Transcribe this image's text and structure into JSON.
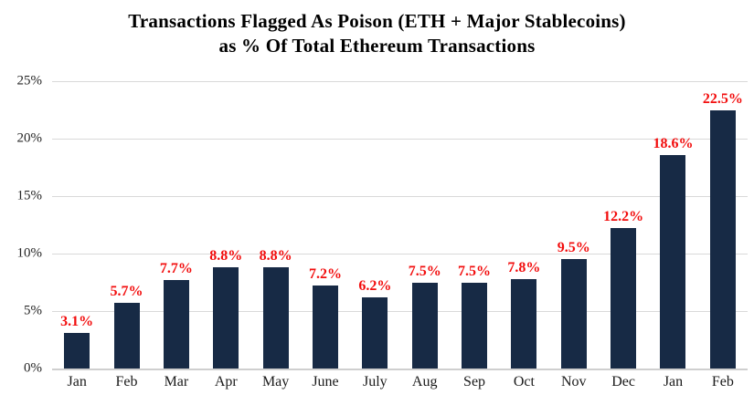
{
  "title": {
    "line1": "Transactions Flagged As Poison (ETH + Major Stablecoins)",
    "line2": "as % Of Total Ethereum Transactions"
  },
  "colors": {
    "bar": "#172a45",
    "data_label": "#f20d0d",
    "gridline": "#d9d9d9",
    "axis_text": "#262626",
    "background": "#ffffff"
  },
  "chart_data": {
    "type": "bar",
    "title": "Transactions Flagged As Poison (ETH + Major Stablecoins) as % Of Total Ethereum Transactions",
    "categories": [
      "Jan",
      "Feb",
      "Mar",
      "Apr",
      "May",
      "June",
      "July",
      "Aug",
      "Sep",
      "Oct",
      "Nov",
      "Dec",
      "Jan",
      "Feb"
    ],
    "values": [
      3.1,
      5.7,
      7.7,
      8.8,
      8.8,
      7.2,
      6.2,
      7.5,
      7.5,
      7.8,
      9.5,
      12.2,
      18.6,
      22.5
    ],
    "data_labels": [
      "3.1%",
      "5.7%",
      "7.7%",
      "8.8%",
      "8.8%",
      "7.2%",
      "6.2%",
      "7.5%",
      "7.5%",
      "7.8%",
      "9.5%",
      "12.2%",
      "18.6%",
      "22.5%"
    ],
    "xlabel": "",
    "ylabel": "",
    "ylim": [
      0,
      25
    ],
    "yticks": [
      0,
      5,
      10,
      15,
      20,
      25
    ],
    "ytick_labels": [
      "0%",
      "5%",
      "10%",
      "15%",
      "20%",
      "25%"
    ],
    "grid": true,
    "legend_position": "none"
  }
}
